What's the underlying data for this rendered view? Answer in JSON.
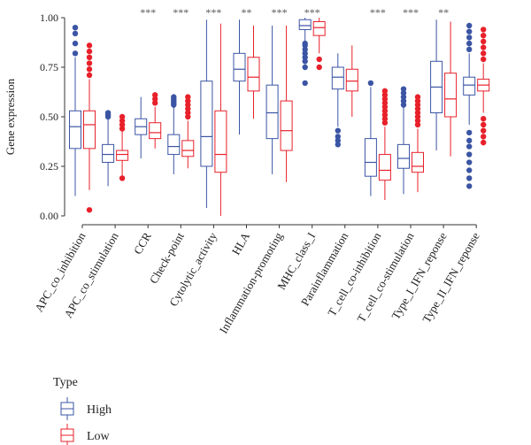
{
  "chart_data": {
    "type": "boxplot",
    "ylabel": "Gene expression",
    "ylim": [
      0.0,
      1.0
    ],
    "yticks": [
      "0.00",
      "0.25",
      "0.50",
      "0.75",
      "1.00"
    ],
    "ytick_values": [
      0.0,
      0.25,
      0.5,
      0.75,
      1.0
    ],
    "categories": [
      "APC_co_inhibition",
      "APC_co_stimulation",
      "CCR",
      "Check-point",
      "Cytolytic_activity",
      "HLA",
      "Inflammation-promoting",
      "MHC_class_I",
      "Parainflammation",
      "T_cell_co-inhibition",
      "T_cell_co-stimulation",
      "Type_I_IFN_reponse",
      "Type_II_IFN_reponse"
    ],
    "significance": [
      "",
      "",
      "***",
      "***",
      "***",
      "**",
      "***",
      "***",
      "",
      "***",
      "***",
      "**",
      ""
    ],
    "legend": {
      "title": "Type",
      "placement": "bottom-left",
      "entries": [
        "High",
        "Low"
      ]
    },
    "colors": {
      "High": "#3b55a4",
      "Low": "#e8202a"
    },
    "series": [
      {
        "name": "High",
        "boxes": [
          {
            "whislo": 0.1,
            "q1": 0.34,
            "med": 0.45,
            "q3": 0.53,
            "whishi": 0.8,
            "outliers": [
              0.82,
              0.87,
              0.92,
              0.95
            ]
          },
          {
            "whislo": 0.15,
            "q1": 0.27,
            "med": 0.31,
            "q3": 0.36,
            "whishi": 0.49,
            "outliers": [
              0.5,
              0.51,
              0.52
            ]
          },
          {
            "whislo": 0.29,
            "q1": 0.41,
            "med": 0.45,
            "q3": 0.49,
            "whishi": 0.6,
            "outliers": []
          },
          {
            "whislo": 0.21,
            "q1": 0.31,
            "med": 0.35,
            "q3": 0.41,
            "whishi": 0.55,
            "outliers": [
              0.56,
              0.57,
              0.58,
              0.59,
              0.6
            ]
          },
          {
            "whislo": 0.04,
            "q1": 0.25,
            "med": 0.4,
            "q3": 0.68,
            "whishi": 0.99,
            "outliers": []
          },
          {
            "whislo": 0.41,
            "q1": 0.68,
            "med": 0.74,
            "q3": 0.82,
            "whishi": 0.99,
            "outliers": []
          },
          {
            "whislo": 0.21,
            "q1": 0.39,
            "med": 0.52,
            "q3": 0.66,
            "whishi": 0.96,
            "outliers": []
          },
          {
            "whislo": 0.88,
            "q1": 0.94,
            "med": 0.96,
            "q3": 0.99,
            "whishi": 1.0,
            "outliers": [
              0.67,
              0.75,
              0.78,
              0.8,
              0.82,
              0.84,
              0.86,
              0.87
            ]
          },
          {
            "whislo": 0.45,
            "q1": 0.64,
            "med": 0.7,
            "q3": 0.75,
            "whishi": 0.82,
            "outliers": [
              0.36,
              0.38,
              0.4,
              0.43
            ]
          },
          {
            "whislo": 0.1,
            "q1": 0.2,
            "med": 0.27,
            "q3": 0.39,
            "whishi": 0.65,
            "outliers": [
              0.67
            ]
          },
          {
            "whislo": 0.11,
            "q1": 0.24,
            "med": 0.29,
            "q3": 0.36,
            "whishi": 0.55,
            "outliers": [
              0.56,
              0.58,
              0.6,
              0.62,
              0.64
            ]
          },
          {
            "whislo": 0.33,
            "q1": 0.52,
            "med": 0.65,
            "q3": 0.78,
            "whishi": 0.99,
            "outliers": []
          },
          {
            "whislo": 0.46,
            "q1": 0.61,
            "med": 0.66,
            "q3": 0.7,
            "whishi": 0.82,
            "outliers": [
              0.15,
              0.19,
              0.23,
              0.27,
              0.31,
              0.35,
              0.38,
              0.42,
              0.84,
              0.87,
              0.9,
              0.93,
              0.96
            ]
          }
        ]
      },
      {
        "name": "Low",
        "boxes": [
          {
            "whislo": 0.13,
            "q1": 0.34,
            "med": 0.46,
            "q3": 0.53,
            "whishi": 0.69,
            "outliers": [
              0.03,
              0.71,
              0.74,
              0.77,
              0.8,
              0.83,
              0.86
            ]
          },
          {
            "whislo": 0.2,
            "q1": 0.28,
            "med": 0.31,
            "q3": 0.33,
            "whishi": 0.43,
            "outliers": [
              0.19,
              0.44,
              0.46,
              0.48,
              0.5
            ]
          },
          {
            "whislo": 0.34,
            "q1": 0.39,
            "med": 0.42,
            "q3": 0.47,
            "whishi": 0.55,
            "outliers": [
              0.57,
              0.59,
              0.61
            ]
          },
          {
            "whislo": 0.24,
            "q1": 0.3,
            "med": 0.33,
            "q3": 0.38,
            "whishi": 0.48,
            "outliers": [
              0.5,
              0.52,
              0.54,
              0.56,
              0.58,
              0.6
            ]
          },
          {
            "whislo": 0.0,
            "q1": 0.22,
            "med": 0.31,
            "q3": 0.53,
            "whishi": 0.97,
            "outliers": []
          },
          {
            "whislo": 0.49,
            "q1": 0.63,
            "med": 0.7,
            "q3": 0.8,
            "whishi": 0.96,
            "outliers": []
          },
          {
            "whislo": 0.17,
            "q1": 0.33,
            "med": 0.43,
            "q3": 0.58,
            "whishi": 0.96,
            "outliers": []
          },
          {
            "whislo": 0.82,
            "q1": 0.91,
            "med": 0.95,
            "q3": 0.98,
            "whishi": 1.0,
            "outliers": [
              0.75,
              0.79
            ]
          },
          {
            "whislo": 0.5,
            "q1": 0.63,
            "med": 0.68,
            "q3": 0.74,
            "whishi": 0.86,
            "outliers": []
          },
          {
            "whislo": 0.08,
            "q1": 0.18,
            "med": 0.23,
            "q3": 0.31,
            "whishi": 0.45,
            "outliers": [
              0.47,
              0.49,
              0.51,
              0.53,
              0.55,
              0.57,
              0.59,
              0.61,
              0.63
            ]
          },
          {
            "whislo": 0.12,
            "q1": 0.22,
            "med": 0.25,
            "q3": 0.32,
            "whishi": 0.44,
            "outliers": [
              0.46,
              0.48,
              0.5,
              0.52,
              0.54,
              0.56,
              0.58,
              0.6
            ]
          },
          {
            "whislo": 0.3,
            "q1": 0.5,
            "med": 0.59,
            "q3": 0.72,
            "whishi": 0.98,
            "outliers": []
          },
          {
            "whislo": 0.52,
            "q1": 0.63,
            "med": 0.66,
            "q3": 0.69,
            "whishi": 0.77,
            "outliers": [
              0.37,
              0.4,
              0.43,
              0.46,
              0.49,
              0.79,
              0.82,
              0.85,
              0.88,
              0.91,
              0.94
            ]
          }
        ]
      }
    ]
  }
}
